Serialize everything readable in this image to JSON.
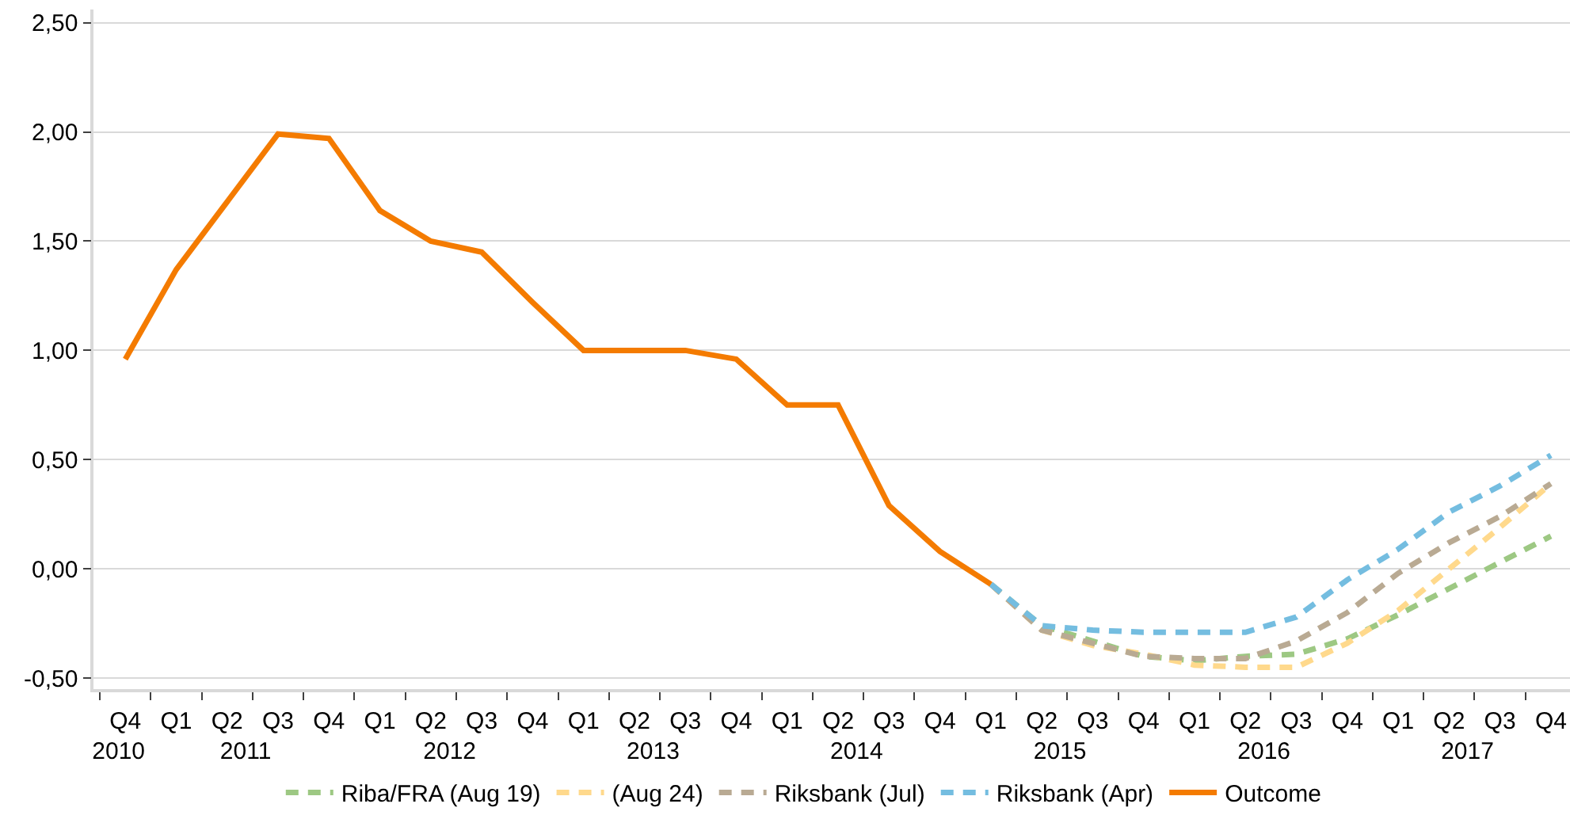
{
  "chart_data": {
    "type": "line",
    "categories": [
      "Q4",
      "Q1",
      "Q2",
      "Q3",
      "Q4",
      "Q1",
      "Q2",
      "Q3",
      "Q4",
      "Q1",
      "Q2",
      "Q3",
      "Q4",
      "Q1",
      "Q2",
      "Q3",
      "Q4",
      "Q1",
      "Q2",
      "Q3",
      "Q4",
      "Q1",
      "Q2",
      "Q3",
      "Q4",
      "Q1",
      "Q2",
      "Q3",
      "Q4"
    ],
    "x2lim": [
      "2010-10-01",
      "2018-01-01"
    ],
    "x2ticks": [
      {
        "value": "2010-11-15",
        "label": "2010"
      },
      {
        "value": "2011-07-01",
        "label": "2011"
      },
      {
        "value": "2012-07-01",
        "label": "2012"
      },
      {
        "value": "2013-07-01",
        "label": "2013"
      },
      {
        "value": "2014-07-01",
        "label": "2014"
      },
      {
        "value": "2015-07-01",
        "label": "2015"
      },
      {
        "value": "2016-07-01",
        "label": "2016"
      },
      {
        "value": "2017-07-01",
        "label": "2017"
      }
    ],
    "series": [
      {
        "name": "Riba/FRA (Aug 19)",
        "color": "#9dc883",
        "line_style": "dashed",
        "values": [
          null,
          null,
          null,
          null,
          null,
          null,
          null,
          null,
          null,
          null,
          null,
          null,
          null,
          null,
          null,
          null,
          null,
          -0.07,
          -0.26,
          -0.33,
          -0.4,
          -0.42,
          -0.4,
          -0.39,
          -0.32,
          -0.21,
          -0.09,
          0.03,
          0.15
        ]
      },
      {
        "name": "(Aug 24)",
        "color": "#ffd98c",
        "line_style": "dashed",
        "values": [
          null,
          null,
          null,
          null,
          null,
          null,
          null,
          null,
          null,
          null,
          null,
          null,
          null,
          null,
          null,
          null,
          null,
          -0.07,
          -0.28,
          -0.35,
          -0.39,
          -0.44,
          -0.45,
          -0.45,
          -0.34,
          -0.19,
          0.0,
          0.19,
          0.39
        ]
      },
      {
        "name": "Riksbank (Jul)",
        "color": "#b9aa93",
        "line_style": "dashed",
        "values": [
          null,
          null,
          null,
          null,
          null,
          null,
          null,
          null,
          null,
          null,
          null,
          null,
          null,
          null,
          null,
          null,
          null,
          -0.07,
          -0.28,
          -0.34,
          -0.4,
          -0.41,
          -0.41,
          -0.33,
          -0.2,
          -0.02,
          0.12,
          0.24,
          0.39
        ]
      },
      {
        "name": "Riksbank (Apr)",
        "color": "#74bde0",
        "line_style": "dashed",
        "values": [
          null,
          null,
          null,
          null,
          null,
          null,
          null,
          null,
          null,
          null,
          null,
          null,
          null,
          null,
          null,
          null,
          null,
          -0.07,
          -0.26,
          -0.28,
          -0.29,
          -0.29,
          -0.29,
          -0.22,
          -0.05,
          0.09,
          0.26,
          0.38,
          0.52
        ]
      },
      {
        "name": "Outcome",
        "color": "#f47b00",
        "line_style": "solid",
        "values": [
          0.96,
          1.37,
          1.68,
          1.99,
          1.97,
          1.64,
          1.5,
          1.45,
          1.22,
          1.0,
          1.0,
          1.0,
          0.96,
          0.75,
          0.75,
          0.29,
          0.08,
          -0.07,
          null,
          null,
          null,
          null,
          null,
          null,
          null,
          null,
          null,
          null,
          null
        ]
      }
    ],
    "ylim": [
      -0.55,
      2.56
    ],
    "yticks": [
      {
        "value": -0.5,
        "label": "-0,50"
      },
      {
        "value": 0,
        "label": "0,00"
      },
      {
        "value": 0.5,
        "label": "0,50"
      },
      {
        "value": 1,
        "label": "1,00"
      },
      {
        "value": 1.5,
        "label": "1,50"
      },
      {
        "value": 2,
        "label": "2,00"
      },
      {
        "value": 2.5,
        "label": "2,50"
      }
    ],
    "grid": "y",
    "legend": "bottom"
  }
}
